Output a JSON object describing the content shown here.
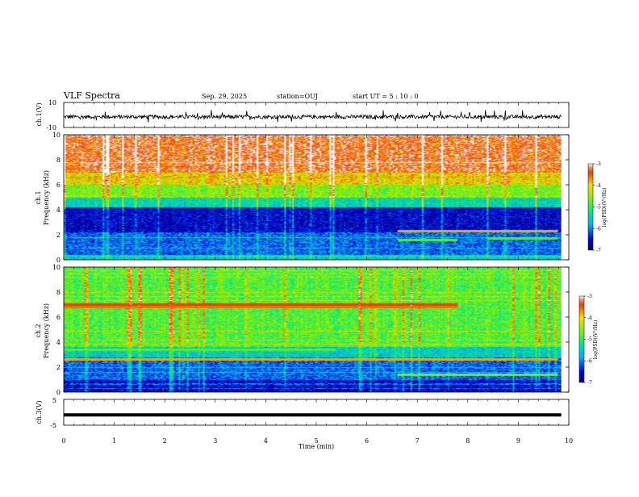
{
  "header": {
    "title": "VLF Spectra",
    "date": "Sep. 29, 2025",
    "station": "station=OUJ",
    "start": "start  UT =  5 : 10 : 0"
  },
  "chart_data": [
    {
      "type": "line",
      "panel": "ch1-waveform",
      "ylabel": "ch.1(V)",
      "ylim": [
        -10,
        10
      ],
      "yticks": [
        10,
        -10
      ],
      "baseline_v": -1.5,
      "noise_amplitude_v": 1.5,
      "spikes_v": [
        -6,
        4
      ]
    },
    {
      "type": "heatmap",
      "panel": "ch1-spectrogram",
      "ylabel_top": "ch.1",
      "ylabel": "Frequency (kHz)",
      "ylim": [
        0,
        10
      ],
      "yticks": [
        0,
        2,
        4,
        6,
        8,
        10
      ],
      "xlim": [
        0,
        10
      ],
      "colorbar": {
        "label": "log(PSD)(V²/Hz)",
        "range": [
          -7,
          -3
        ],
        "ticks": [
          "-3",
          "-4",
          "-5",
          "-6",
          "-7"
        ]
      },
      "bands_khz": [
        {
          "from": 0,
          "to": 0.4,
          "level": -5.5
        },
        {
          "from": 0.4,
          "to": 2.2,
          "level": -6.1
        },
        {
          "from": 2.2,
          "to": 4.2,
          "level": -6.6
        },
        {
          "from": 4.2,
          "to": 5.0,
          "level": -5.4
        },
        {
          "from": 5.0,
          "to": 6.0,
          "level": -4.6
        },
        {
          "from": 6.0,
          "to": 7.0,
          "level": -4.0
        },
        {
          "from": 7.0,
          "to": 10,
          "level": -3.4
        }
      ],
      "tones": [
        {
          "t0": 6.6,
          "t1": 7.8,
          "f": 1.6,
          "level": -4.8
        },
        {
          "t0": 8.4,
          "t1": 9.8,
          "f": 1.7,
          "level": -4.8
        },
        {
          "t0": 6.6,
          "t1": 9.8,
          "f": 2.3,
          "level": -3.8
        }
      ]
    },
    {
      "type": "heatmap",
      "panel": "ch2-spectrogram",
      "ylabel_top": "ch.2",
      "ylabel": "Frequency (kHz)",
      "ylim": [
        0,
        10
      ],
      "yticks": [
        0,
        2,
        4,
        6,
        8,
        10
      ],
      "xlim": [
        0,
        10
      ],
      "colorbar": {
        "label": "log(PSD)(V²/Hz)",
        "range": [
          -7,
          -3
        ],
        "ticks": [
          "-3",
          "-4",
          "-5",
          "-6",
          "-7"
        ]
      },
      "bands_khz": [
        {
          "from": 0,
          "to": 1.0,
          "level": -6.6
        },
        {
          "from": 1.0,
          "to": 2.8,
          "level": -6.1
        },
        {
          "from": 2.8,
          "to": 3.6,
          "level": -5.5
        },
        {
          "from": 3.6,
          "to": 10,
          "level": -4.8
        }
      ],
      "tones": [
        {
          "t0": 0,
          "t1": 7.8,
          "f": 7.0,
          "level": -3.4
        },
        {
          "t0": 0,
          "t1": 7.8,
          "f": 6.8,
          "level": -3.6
        },
        {
          "t0": 0,
          "t1": 5.4,
          "f": 3.4,
          "level": -4.8
        },
        {
          "t0": 5.4,
          "t1": 9.8,
          "f": 3.8,
          "level": -4.8
        },
        {
          "t0": 0,
          "t1": 9.8,
          "f": 2.6,
          "level": -3.8
        },
        {
          "t0": 6.6,
          "t1": 9.8,
          "f": 1.4,
          "level": -4.6
        }
      ]
    },
    {
      "type": "line",
      "panel": "ch3-waveform",
      "ylabel": "ch.3(V)",
      "ylim": [
        -5,
        5
      ],
      "yticks": [
        5,
        -5
      ],
      "values_v": [
        -1,
        -1
      ],
      "xlabel": "Time (min)",
      "xlim": [
        0,
        10
      ],
      "xticks": [
        0,
        1,
        2,
        3,
        4,
        5,
        6,
        7,
        8,
        9,
        10
      ]
    }
  ],
  "data_end_min": 9.85,
  "colors": {
    "frame": "#000000",
    "background": "#ffffff"
  }
}
